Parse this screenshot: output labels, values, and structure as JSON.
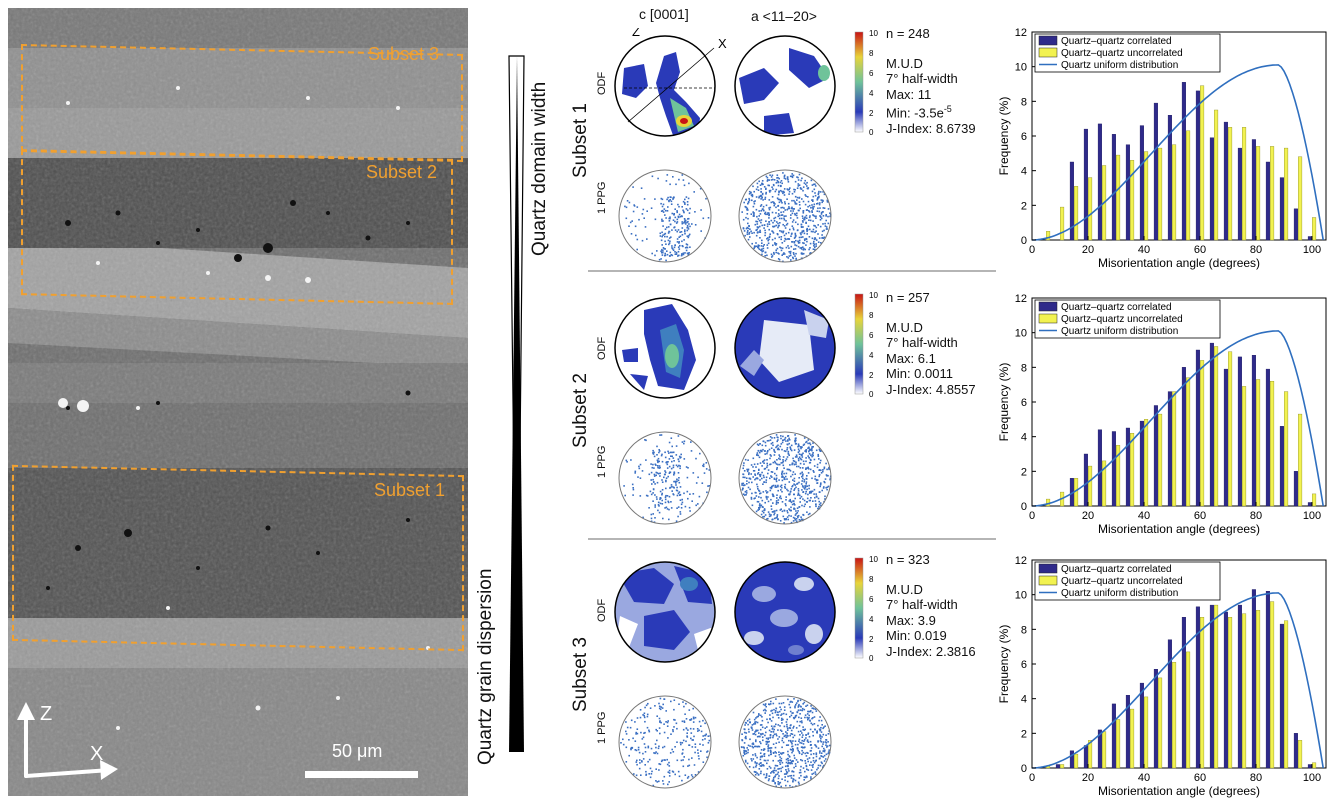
{
  "sem": {
    "subsets": [
      "Subset 3",
      "Subset 2",
      "Subset 1"
    ],
    "scale_bar": "50 μm",
    "axis_z": "Z",
    "axis_x": "X"
  },
  "wedges": {
    "domain_width": "Quartz domain width",
    "grain_dispersion": "Quartz grain dispersion"
  },
  "pole_figures": {
    "col_c": "c [0001]",
    "col_a": "a <11–20>",
    "odf_label": "ODF",
    "ppg_label": "1 PPG",
    "axis_z": "Z",
    "axis_x": "X",
    "legend_ticks": [
      "10",
      "8",
      "6",
      "4",
      "2",
      "0"
    ],
    "colors": {
      "high": "#c81414",
      "mid": "#e8d43a",
      "low_mid": "#6fc39a",
      "low": "#2a3ab8",
      "faint": "#c9d2ee"
    },
    "rows": [
      {
        "label": "Subset 1",
        "n": "n = 248",
        "mud": "M.U.D",
        "halfwidth": "7° half-width",
        "max": "Max: 11",
        "min": "Min: -3.5e",
        "min_exp": "-5",
        "jindex": "J-Index: 8.6739"
      },
      {
        "label": "Subset 2",
        "n": "n = 257",
        "mud": "M.U.D",
        "halfwidth": "7° half-width",
        "max": "Max: 6.1",
        "min": "Min: 0.0011",
        "min_exp": "",
        "jindex": "J-Index: 4.8557"
      },
      {
        "label": "Subset 3",
        "n": "n = 323",
        "mud": "M.U.D",
        "halfwidth": "7° half-width",
        "max": "Max: 3.9",
        "min": "Min: 0.019",
        "min_exp": "",
        "jindex": "J-Index: 2.3816"
      }
    ]
  },
  "chart_data": [
    {
      "type": "bar",
      "xlabel": "Misorientation angle (degrees)",
      "ylabel": "Frequency (%)",
      "xlim": [
        0,
        105
      ],
      "ylim": [
        0,
        12
      ],
      "xticks": [
        0,
        20,
        40,
        60,
        80,
        100
      ],
      "yticks": [
        0,
        2,
        4,
        6,
        8,
        10,
        12
      ],
      "legend_position": "top-left",
      "colors": {
        "correlated": "#2f2a8a",
        "uncorrelated": "#f2f250",
        "uniform": "#2f6fbf"
      },
      "x": [
        5,
        10,
        15,
        20,
        25,
        30,
        35,
        40,
        45,
        50,
        55,
        60,
        65,
        70,
        75,
        80,
        85,
        90,
        95,
        100
      ],
      "series": [
        {
          "name": "Quartz–quartz correlated",
          "values": [
            0,
            0,
            4.5,
            6.4,
            6.7,
            6.1,
            5.5,
            6.6,
            7.9,
            7.2,
            9.1,
            8.6,
            5.9,
            6.8,
            5.3,
            5.8,
            4.5,
            3.6,
            1.8,
            0.2
          ]
        },
        {
          "name": "Quartz–quartz uncorrelated",
          "values": [
            0.5,
            1.9,
            3.1,
            3.6,
            4.3,
            4.9,
            4.6,
            5.1,
            5.3,
            5.5,
            6.3,
            8.9,
            7.5,
            6.5,
            6.5,
            5.4,
            5.4,
            5.3,
            4.8,
            1.3
          ]
        },
        {
          "name": "Quartz uniform distribution",
          "curve": true
        }
      ]
    },
    {
      "type": "bar",
      "xlabel": "Misorientation angle (degrees)",
      "ylabel": "Frequency (%)",
      "xlim": [
        0,
        105
      ],
      "ylim": [
        0,
        12
      ],
      "xticks": [
        0,
        20,
        40,
        60,
        80,
        100
      ],
      "yticks": [
        0,
        2,
        4,
        6,
        8,
        10,
        12
      ],
      "legend_position": "top-left",
      "colors": {
        "correlated": "#2f2a8a",
        "uncorrelated": "#f2f250",
        "uniform": "#2f6fbf"
      },
      "x": [
        5,
        10,
        15,
        20,
        25,
        30,
        35,
        40,
        45,
        50,
        55,
        60,
        65,
        70,
        75,
        80,
        85,
        90,
        95,
        100
      ],
      "series": [
        {
          "name": "Quartz–quartz correlated",
          "values": [
            0,
            0,
            1.6,
            3.0,
            4.4,
            4.3,
            4.5,
            4.9,
            5.8,
            6.6,
            8.0,
            9.0,
            9.4,
            7.9,
            8.6,
            8.7,
            7.9,
            4.6,
            2.0,
            0.2
          ]
        },
        {
          "name": "Quartz–quartz uncorrelated",
          "values": [
            0.4,
            0.8,
            1.6,
            2.3,
            2.6,
            3.5,
            4.2,
            5.0,
            5.3,
            6.6,
            7.4,
            8.4,
            9.2,
            8.9,
            6.9,
            7.3,
            7.2,
            6.6,
            5.3,
            0.7
          ]
        },
        {
          "name": "Quartz uniform distribution",
          "curve": true
        }
      ]
    },
    {
      "type": "bar",
      "xlabel": "Misorientation angle (degrees)",
      "ylabel": "Frequency (%)",
      "xlim": [
        0,
        105
      ],
      "ylim": [
        0,
        12
      ],
      "xticks": [
        0,
        20,
        40,
        60,
        80,
        100
      ],
      "yticks": [
        0,
        2,
        4,
        6,
        8,
        10,
        12
      ],
      "legend_position": "top-left",
      "colors": {
        "correlated": "#2f2a8a",
        "uncorrelated": "#f2f250",
        "uniform": "#2f6fbf"
      },
      "x": [
        5,
        10,
        15,
        20,
        25,
        30,
        35,
        40,
        45,
        50,
        55,
        60,
        65,
        70,
        75,
        80,
        85,
        90,
        95,
        100
      ],
      "series": [
        {
          "name": "Quartz–quartz correlated",
          "values": [
            0,
            0.2,
            1.0,
            1.3,
            2.2,
            3.7,
            4.2,
            4.9,
            5.7,
            7.4,
            8.7,
            9.3,
            9.4,
            9.0,
            9.4,
            10.3,
            10.2,
            8.3,
            2.0,
            0.2
          ]
        },
        {
          "name": "Quartz–quartz uncorrelated",
          "values": [
            0.1,
            0.2,
            0.8,
            1.6,
            2.1,
            2.8,
            3.4,
            4.1,
            5.2,
            6.1,
            6.7,
            8.7,
            9.4,
            8.7,
            8.9,
            9.1,
            9.6,
            8.5,
            1.6,
            0.3
          ]
        },
        {
          "name": "Quartz uniform distribution",
          "curve": true
        }
      ]
    }
  ]
}
